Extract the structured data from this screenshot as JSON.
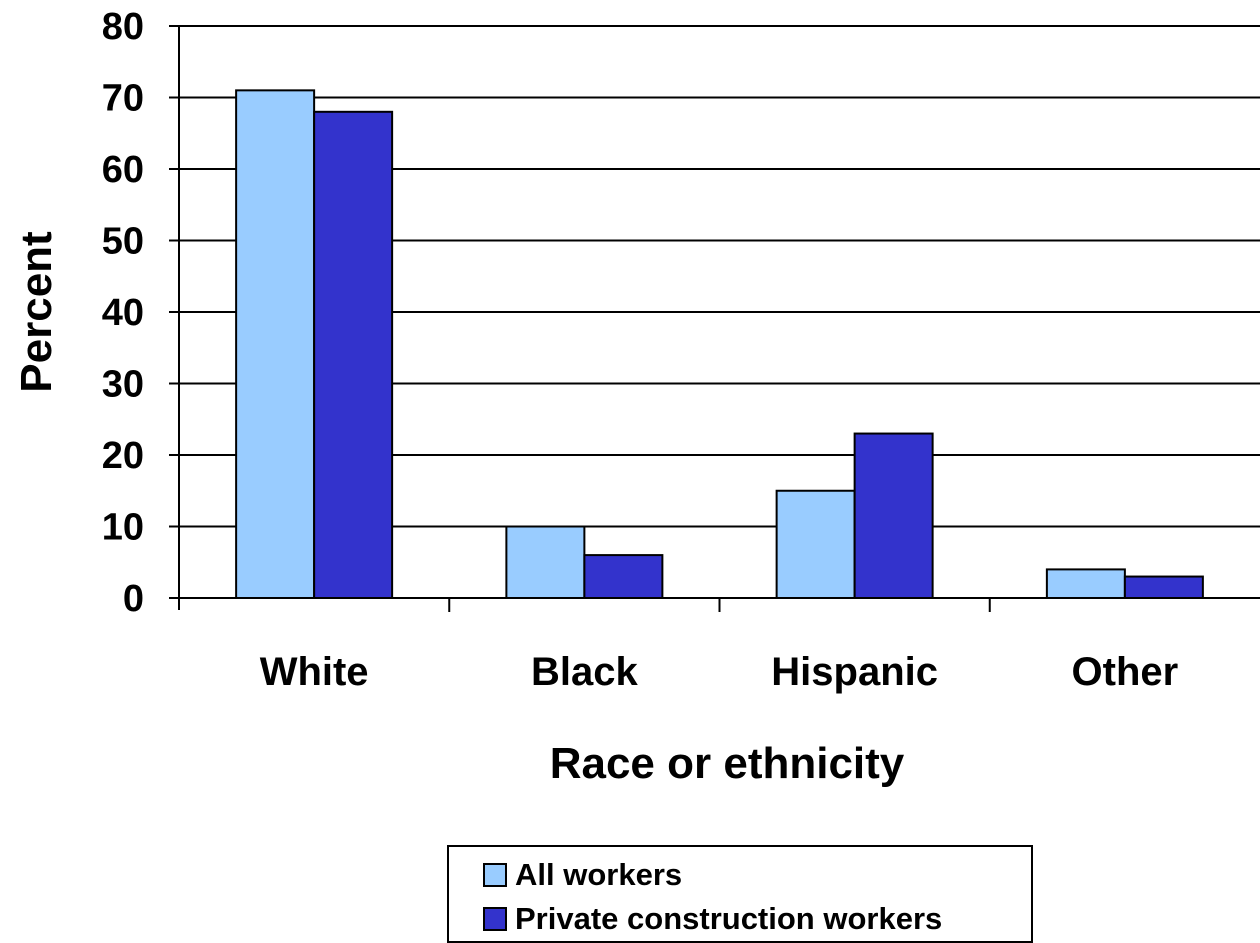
{
  "chart_data": {
    "type": "bar",
    "title": "",
    "categories": [
      "White",
      "Black",
      "Hispanic",
      "Other"
    ],
    "series": [
      {
        "name": "All workers",
        "values": [
          71,
          10,
          15,
          4
        ],
        "color": "#99CCFF"
      },
      {
        "name": "Private construction workers",
        "values": [
          68,
          6,
          23,
          3
        ],
        "color": "#3333CC"
      }
    ],
    "xlabel": "Race or ethnicity",
    "ylabel": "Percent",
    "ylim": [
      0,
      80
    ],
    "yticks": [
      "0",
      "10",
      "20",
      "30",
      "40",
      "50",
      "60",
      "70",
      "80"
    ],
    "grid": true,
    "legend_position": "bottom"
  }
}
